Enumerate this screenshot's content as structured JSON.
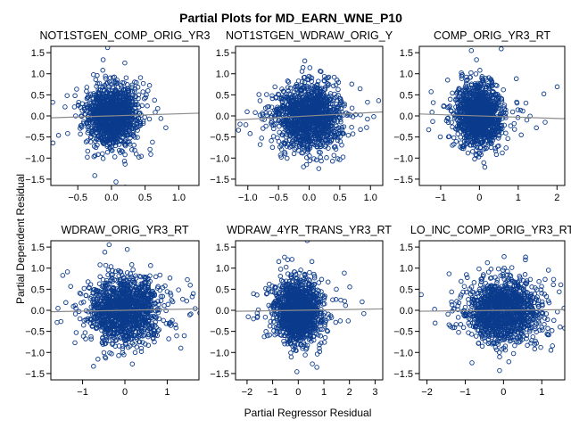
{
  "title": "Partial Plots for MD_EARN_WNE_P10",
  "xlabel": "Partial Regressor Residual",
  "ylabel": "Partial Dependent Residual",
  "colors": {
    "marker": "#0b3b8c",
    "refline": "#8c8c8c",
    "frame": "#000000"
  },
  "chart_data": [
    {
      "type": "scatter",
      "title": "NOT1STGEN_COMP_ORIG_YR3",
      "xticks": [
        -0.5,
        0.0,
        0.5,
        1.0
      ],
      "yticks": [
        -1.5,
        -1.0,
        -0.5,
        0.0,
        0.5,
        1.0,
        1.5
      ],
      "xlim": [
        -0.9,
        1.3
      ],
      "ylim": [
        -1.65,
        1.65
      ],
      "spread_x": 0.18,
      "spread_y": 0.35,
      "n_points": 1300,
      "reference_line": {
        "slope": 0.05,
        "intercept": 0.0
      }
    },
    {
      "type": "scatter",
      "title": "NOT1STGEN_WDRAW_ORIG_Y",
      "xticks": [
        -1.0,
        -0.5,
        0.0,
        0.5,
        1.0
      ],
      "yticks": [
        -1.5,
        -1.0,
        -0.5,
        0.0,
        0.5,
        1.0,
        1.5
      ],
      "xlim": [
        -1.2,
        1.2
      ],
      "ylim": [
        -1.65,
        1.65
      ],
      "spread_x": 0.26,
      "spread_y": 0.38,
      "n_points": 1300,
      "reference_line": {
        "slope": 0.08,
        "intercept": 0.0
      }
    },
    {
      "type": "scatter",
      "title": "COMP_ORIG_YR3_RT",
      "xticks": [
        -1,
        0,
        1,
        2
      ],
      "yticks": [
        -1.5,
        -1.0,
        -0.5,
        0.0,
        0.5,
        1.0,
        1.5
      ],
      "xlim": [
        -1.55,
        2.2
      ],
      "ylim": [
        -1.65,
        1.65
      ],
      "spread_x": 0.28,
      "spread_y": 0.35,
      "n_points": 1300,
      "reference_line": {
        "slope": -0.03,
        "intercept": 0.0
      }
    },
    {
      "type": "scatter",
      "title": "WDRAW_ORIG_YR3_RT",
      "xticks": [
        -1,
        0,
        1
      ],
      "yticks": [
        -1.5,
        -1.0,
        -0.5,
        0.0,
        0.5,
        1.0,
        1.5
      ],
      "xlim": [
        -1.75,
        1.75
      ],
      "ylim": [
        -1.65,
        1.65
      ],
      "spread_x": 0.42,
      "spread_y": 0.38,
      "n_points": 1300,
      "reference_line": {
        "slope": 0.02,
        "intercept": 0.0
      }
    },
    {
      "type": "scatter",
      "title": "WDRAW_4YR_TRANS_YR3_RT",
      "xticks": [
        -2,
        -1,
        0,
        1,
        2,
        3
      ],
      "yticks": [
        -1.5,
        -1.0,
        -0.5,
        0.0,
        0.5,
        1.0,
        1.5
      ],
      "xlim": [
        -2.45,
        3.3
      ],
      "ylim": [
        -1.65,
        1.65
      ],
      "spread_x": 0.42,
      "spread_y": 0.36,
      "n_points": 1300,
      "reference_line": {
        "slope": 0.01,
        "intercept": 0.0
      }
    },
    {
      "type": "scatter",
      "title": "LO_INC_COMP_ORIG_YR3_RT",
      "xticks": [
        -2,
        -1,
        0,
        1
      ],
      "yticks": [
        -1.5,
        -1.0,
        -0.5,
        0.0,
        0.5,
        1.0,
        1.5
      ],
      "xlim": [
        -2.2,
        1.6
      ],
      "ylim": [
        -1.65,
        1.65
      ],
      "spread_x": 0.48,
      "spread_y": 0.36,
      "n_points": 1300,
      "reference_line": {
        "slope": 0.01,
        "intercept": 0.0
      }
    }
  ]
}
